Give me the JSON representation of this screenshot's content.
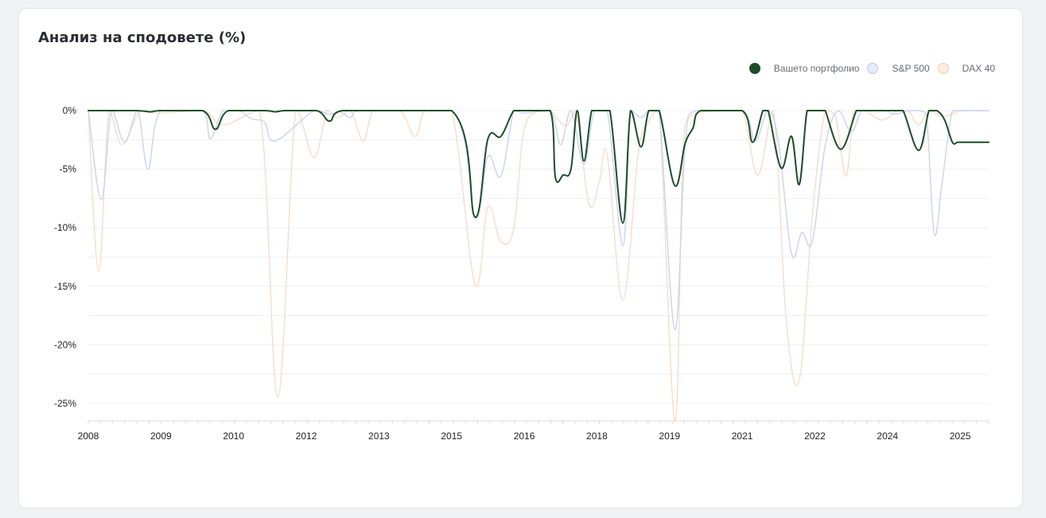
{
  "card": {
    "title": "Анализ на сподовете (%)"
  },
  "legend": [
    {
      "label": "Вашето портфолио",
      "fill": "#1e4d2b",
      "stroke": "#1e4d2b"
    },
    {
      "label": "S&P 500",
      "fill": "#e7edf9",
      "stroke": "#b9c8ea"
    },
    {
      "label": "DAX 40",
      "fill": "#fdeee3",
      "stroke": "#f3c9a8"
    }
  ],
  "chart_data": {
    "type": "line",
    "title": "Анализ на сподовете (%)",
    "xlabel": "",
    "ylabel": "",
    "x_range": [
      2008.0,
      2025.35
    ],
    "ylim": [
      -26.5,
      0
    ],
    "y_ticks": [
      0,
      -5,
      -10,
      -15,
      -20,
      -25
    ],
    "y_tick_labels": [
      "0%",
      "-5%",
      "-10%",
      "-15%",
      "-20%",
      "-25%"
    ],
    "x_ticks": [
      {
        "pos": 2008.0,
        "label": "2008"
      },
      {
        "pos": 2009.4,
        "label": "2009"
      },
      {
        "pos": 2010.8,
        "label": "2010"
      },
      {
        "pos": 2012.2,
        "label": "2012"
      },
      {
        "pos": 2013.6,
        "label": "2013"
      },
      {
        "pos": 2015.0,
        "label": "2015"
      },
      {
        "pos": 2016.4,
        "label": "2016"
      },
      {
        "pos": 2017.8,
        "label": "2018"
      },
      {
        "pos": 2019.2,
        "label": "2019"
      },
      {
        "pos": 2020.6,
        "label": "2021"
      },
      {
        "pos": 2022.0,
        "label": "2022"
      },
      {
        "pos": 2023.4,
        "label": "2024"
      },
      {
        "pos": 2024.8,
        "label": "2025"
      }
    ],
    "grid": true,
    "legend_position": "top-right",
    "series": [
      {
        "name": "Вашето портфолио",
        "color": "#1e4d2b",
        "x": [
          2008.0,
          2008.9,
          2009.2,
          2009.4,
          2010.2,
          2010.45,
          2010.7,
          2011.4,
          2011.6,
          2011.8,
          2012.4,
          2012.65,
          2012.9,
          2015.0,
          2015.45,
          2015.7,
          2015.95,
          2016.2,
          2016.4,
          2016.9,
          2017.0,
          2017.15,
          2017.3,
          2017.42,
          2017.55,
          2017.7,
          2017.85,
          2018.05,
          2018.3,
          2018.45,
          2018.65,
          2018.8,
          2019.0,
          2019.3,
          2019.5,
          2019.65,
          2019.8,
          2020.6,
          2020.8,
          2021.0,
          2021.1,
          2021.35,
          2021.55,
          2021.7,
          2021.85,
          2022.0,
          2022.15,
          2022.2,
          2022.5,
          2022.8,
          2022.9,
          2023.05,
          2023.3,
          2023.55,
          2023.7,
          2024.0,
          2024.2,
          2024.35,
          2024.5,
          2024.65,
          2024.75,
          2024.85,
          2025.0,
          2025.35
        ],
        "values": [
          0,
          0,
          -0.1,
          0,
          0,
          -1.6,
          0,
          0,
          -0.1,
          0,
          0,
          -0.9,
          0,
          0,
          -9.1,
          -2.4,
          -2.2,
          0,
          0,
          0,
          -5.7,
          -5.5,
          -5.0,
          0,
          -4.3,
          0,
          0,
          0,
          -9.6,
          0,
          -3.1,
          0,
          0,
          -6.4,
          -2.8,
          -1.5,
          0,
          0,
          -2.7,
          0,
          0,
          -4.9,
          -2.2,
          -6.3,
          0,
          0,
          0,
          0,
          -3.3,
          0,
          0,
          0,
          0,
          0,
          0,
          -3.4,
          0,
          0,
          -0.8,
          -2.7,
          -2.7,
          -2.7,
          -2.7,
          -2.7
        ]
      },
      {
        "name": "S&P 500",
        "color": "#c8d4ef",
        "x": [
          2008.0,
          2008.25,
          2008.45,
          2008.7,
          2008.95,
          2009.15,
          2009.4,
          2010.2,
          2010.35,
          2010.6,
          2010.9,
          2011.15,
          2011.4,
          2011.6,
          2012.35,
          2012.65,
          2012.85,
          2013.05,
          2013.2,
          2015.0,
          2015.45,
          2015.7,
          2015.95,
          2016.2,
          2016.4,
          2016.9,
          2017.1,
          2017.3,
          2017.55,
          2017.75,
          2018.0,
          2018.3,
          2018.45,
          2018.65,
          2018.8,
          2019.0,
          2019.3,
          2019.5,
          2019.7,
          2020.6,
          2020.85,
          2021.1,
          2021.3,
          2021.55,
          2021.75,
          2021.95,
          2022.2,
          2022.45,
          2022.7,
          2022.9,
          2023.1,
          2023.35,
          2023.55,
          2023.8,
          2023.9,
          2024.0,
          2024.15,
          2024.3,
          2024.45,
          2024.65,
          2024.85,
          2025.35
        ],
        "values": [
          0,
          -7.6,
          0,
          -2.7,
          0,
          -5.0,
          0,
          0,
          -2.4,
          0,
          0,
          -0.7,
          -1.0,
          -2.6,
          0,
          -0.3,
          -0.1,
          -0.6,
          0,
          0,
          -9.0,
          -3.9,
          -5.6,
          0,
          -0.2,
          0,
          -2.9,
          0,
          -4.6,
          0,
          0,
          -11.5,
          0,
          -0.6,
          0,
          0,
          -18.7,
          -3.0,
          0,
          0,
          -2.6,
          0,
          -2.7,
          -12.2,
          -10.4,
          -11.2,
          -3.0,
          0,
          -1.8,
          0,
          0,
          0,
          -0.3,
          0,
          0,
          0,
          -0.3,
          -10.5,
          -6.2,
          0,
          0,
          0
        ]
      },
      {
        "name": "DAX 40",
        "color": "#f9dcc6",
        "x": [
          2008.0,
          2008.2,
          2008.4,
          2008.65,
          2009.0,
          2009.3,
          2010.2,
          2010.6,
          2011.3,
          2011.65,
          2012.0,
          2012.35,
          2012.6,
          2012.8,
          2013.05,
          2013.3,
          2013.5,
          2014.0,
          2014.3,
          2014.5,
          2015.0,
          2015.45,
          2015.7,
          2015.95,
          2016.2,
          2016.4,
          2016.7,
          2016.9,
          2017.2,
          2017.4,
          2017.65,
          2017.85,
          2018.0,
          2018.3,
          2018.6,
          2018.8,
          2019.0,
          2019.3,
          2019.45,
          2019.6,
          2020.2,
          2020.6,
          2020.9,
          2021.2,
          2021.45,
          2021.7,
          2021.95,
          2022.2,
          2022.4,
          2022.6,
          2022.75,
          2022.95,
          2023.3,
          2023.6,
          2023.8,
          2024.0,
          2024.2,
          2024.45,
          2024.7,
          2024.85,
          2025.35
        ],
        "values": [
          0,
          -13.7,
          0,
          -2.9,
          0,
          -0.2,
          0,
          -1.2,
          0,
          -24.5,
          0,
          -4.0,
          0,
          -0.6,
          0,
          -2.6,
          0,
          0,
          -2.2,
          0,
          0,
          -14.8,
          -8.2,
          -11.2,
          -10.0,
          -1.5,
          0,
          0,
          -1.3,
          0,
          -8.0,
          -6.0,
          -3.8,
          -16.2,
          -3.5,
          -1.0,
          0,
          -26.5,
          -5.0,
          -0.5,
          0,
          0,
          -5.5,
          0,
          -18.0,
          -23.0,
          -9.0,
          0,
          -0.5,
          -5.6,
          0,
          0,
          -0.8,
          0,
          0,
          -1.2,
          0,
          -0.5,
          -0.2,
          0,
          0
        ]
      }
    ]
  }
}
